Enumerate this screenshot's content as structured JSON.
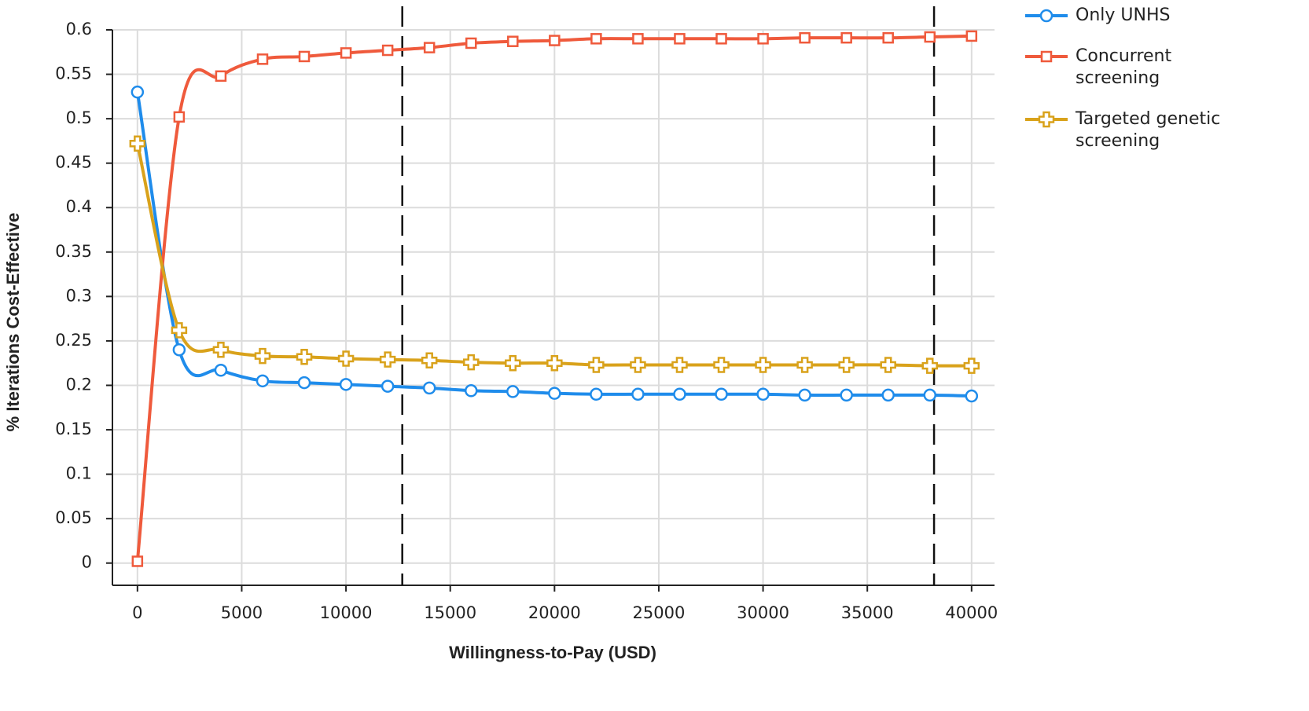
{
  "chart_data": {
    "type": "line",
    "x_label": "Willingness-to-Pay (USD)",
    "y_label": "% Iterations Cost-Effective",
    "x": [
      0,
      2000,
      4000,
      6000,
      8000,
      10000,
      12000,
      14000,
      16000,
      18000,
      20000,
      22000,
      24000,
      26000,
      28000,
      30000,
      32000,
      34000,
      36000,
      38000,
      40000
    ],
    "series": [
      {
        "name": "Only UNHS",
        "color": "#1f8ceb",
        "marker": "circle",
        "values": [
          0.53,
          0.24,
          0.217,
          0.205,
          0.203,
          0.201,
          0.199,
          0.197,
          0.194,
          0.193,
          0.191,
          0.19,
          0.19,
          0.19,
          0.19,
          0.19,
          0.189,
          0.189,
          0.189,
          0.189,
          0.188
        ]
      },
      {
        "name": "Concurrent screening",
        "color": "#ef5a3c",
        "marker": "square",
        "values": [
          0.002,
          0.502,
          0.548,
          0.567,
          0.57,
          0.574,
          0.577,
          0.58,
          0.585,
          0.587,
          0.588,
          0.59,
          0.59,
          0.59,
          0.59,
          0.59,
          0.591,
          0.591,
          0.591,
          0.592,
          0.593
        ]
      },
      {
        "name": "Targeted genetic screening",
        "color": "#d9a21b",
        "marker": "plus",
        "values": [
          0.472,
          0.262,
          0.24,
          0.233,
          0.232,
          0.23,
          0.229,
          0.228,
          0.226,
          0.225,
          0.225,
          0.223,
          0.223,
          0.223,
          0.223,
          0.223,
          0.223,
          0.223,
          0.223,
          0.222,
          0.222
        ]
      }
    ],
    "reference_lines_x": [
      12700,
      38200
    ],
    "xlim": [
      -1200,
      41100
    ],
    "ylim": [
      -0.025,
      0.6
    ],
    "xticks": [
      0,
      5000,
      10000,
      15000,
      20000,
      25000,
      30000,
      35000,
      40000
    ],
    "yticks": [
      0,
      0.05,
      0.1,
      0.15,
      0.2,
      0.25,
      0.3,
      0.35,
      0.4,
      0.45,
      0.5,
      0.55,
      0.6
    ],
    "grid": true
  }
}
